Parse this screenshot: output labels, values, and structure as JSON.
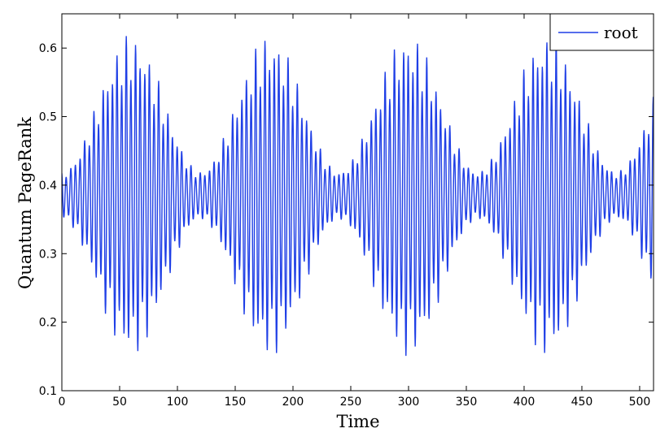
{
  "chart_data": {
    "type": "line",
    "title": "",
    "xlabel": "Time",
    "ylabel": "Quantum PageRank",
    "xlim": [
      0,
      512
    ],
    "ylim": [
      0.1,
      0.65
    ],
    "x_ticks": [
      0,
      50,
      100,
      150,
      200,
      250,
      300,
      350,
      400,
      450,
      500
    ],
    "y_ticks": [
      0.1,
      0.2,
      0.3,
      0.4,
      0.5,
      0.6
    ],
    "y_tick_labels": [
      "0.1",
      "0.2",
      "0.3",
      "0.4",
      "0.5",
      "0.6"
    ],
    "grid": false,
    "legend": {
      "position": "top-right",
      "entries": [
        "root"
      ]
    },
    "series": [
      {
        "name": "root",
        "color": "#1f3fe6",
        "description_of_shape": "rapid oscillation around 0.385 with an envelope peaking near t=60, 180, 300, 420",
        "mean": 0.385,
        "envelope_max_amplitude": 0.235,
        "envelope_min_amplitude": 0.035,
        "envelope_period": 120,
        "envelope_peak_t": 60,
        "carrier_period": 4.0,
        "x_start": 0,
        "x_end": 512,
        "sample_step": 1,
        "peaks": [
          {
            "x": 38,
            "y": 0.595
          },
          {
            "x": 62,
            "y": 0.618
          },
          {
            "x": 172,
            "y": 0.611
          },
          {
            "x": 298,
            "y": 0.618
          },
          {
            "x": 425,
            "y": 0.616
          }
        ],
        "troughs": [
          {
            "x": 64,
            "y": 0.147
          },
          {
            "x": 172,
            "y": 0.155
          },
          {
            "x": 296,
            "y": 0.15
          },
          {
            "x": 425,
            "y": 0.151
          }
        ]
      }
    ]
  }
}
